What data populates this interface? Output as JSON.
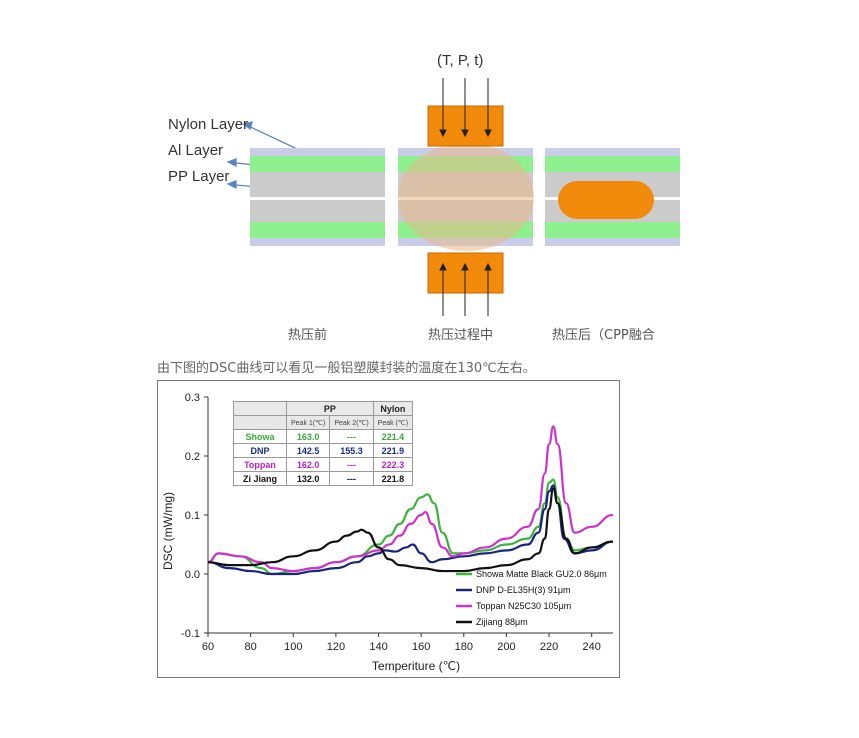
{
  "diagram": {
    "params_label": "(T, P, t)",
    "layers": [
      "Nylon Layer",
      "Al Layer",
      "PP Layer"
    ],
    "stages": [
      "热压前",
      "热压过程中",
      "热压后（CPP融合"
    ],
    "colors": {
      "nylon": "#c9cde8",
      "al": "#c9c9c9",
      "pp": "#8ef08e",
      "heater": "#f28a0c",
      "melt": "#f28a0c",
      "center": "#ffffff"
    }
  },
  "caption": "由下图的DSC曲线可以看见一般铝塑膜封装的温度在130℃左右。",
  "table": {
    "header_groups": [
      "PP",
      "Nylon"
    ],
    "sub_headers": [
      "Peak 1(℃)",
      "Peak 2(℃)",
      "Peak (℃)"
    ],
    "rows": [
      {
        "name": "Showa",
        "color": "#3aa83a",
        "values": [
          "163.0",
          "---",
          "221.4"
        ]
      },
      {
        "name": "DNP",
        "color": "#1a2a8a",
        "values": [
          "142.5",
          "155.3",
          "221.9"
        ]
      },
      {
        "name": "Toppan",
        "color": "#c21fc2",
        "values": [
          "162.0",
          "---",
          "222.3"
        ]
      },
      {
        "name": "Zi Jiang",
        "color": "#111111",
        "values": [
          "132.0",
          "---",
          "221.8"
        ]
      }
    ]
  },
  "chart_data": {
    "type": "line",
    "xlabel": "Temperiture (℃)",
    "ylabel": "DSC (mW/mg)",
    "xlim": [
      60,
      250
    ],
    "ylim": [
      -0.1,
      0.3
    ],
    "xticks": [
      60,
      80,
      100,
      120,
      140,
      160,
      180,
      200,
      220,
      240
    ],
    "yticks": [
      -0.1,
      0.0,
      0.1,
      0.2,
      0.3
    ],
    "ytick_labels": [
      "-0.1",
      "0.0",
      "0.1",
      "0.2",
      "0.3"
    ],
    "series": [
      {
        "name": "Showa Matte Black GU2.0 86μm",
        "color": "#3cb43c",
        "x": [
          60,
          65,
          75,
          85,
          90,
          100,
          110,
          120,
          130,
          140,
          145,
          150,
          155,
          160,
          163,
          166,
          170,
          175,
          180,
          190,
          200,
          210,
          215,
          218,
          220,
          222,
          224,
          228,
          232,
          240,
          250
        ],
        "y": [
          0.02,
          0.035,
          0.03,
          0.01,
          0.0,
          0.005,
          0.01,
          0.02,
          0.03,
          0.05,
          0.065,
          0.085,
          0.11,
          0.13,
          0.135,
          0.12,
          0.07,
          0.035,
          0.035,
          0.04,
          0.05,
          0.06,
          0.08,
          0.12,
          0.155,
          0.16,
          0.13,
          0.06,
          0.04,
          0.045,
          0.055
        ]
      },
      {
        "name": "DNP D-EL35H(3) 91μm",
        "color": "#1a237e",
        "x": [
          60,
          70,
          80,
          90,
          100,
          110,
          120,
          130,
          135,
          140,
          143,
          148,
          153,
          156,
          160,
          165,
          170,
          180,
          190,
          200,
          210,
          215,
          218,
          220,
          222,
          224,
          227,
          232,
          240,
          250
        ],
        "y": [
          0.02,
          0.01,
          0.005,
          0.0,
          0.0,
          0.005,
          0.01,
          0.02,
          0.03,
          0.035,
          0.04,
          0.038,
          0.045,
          0.05,
          0.035,
          0.02,
          0.025,
          0.03,
          0.035,
          0.04,
          0.05,
          0.07,
          0.11,
          0.14,
          0.15,
          0.12,
          0.06,
          0.035,
          0.04,
          0.055
        ]
      },
      {
        "name": "Toppan N25C30 105μm",
        "color": "#cc33cc",
        "x": [
          60,
          65,
          75,
          85,
          90,
          100,
          110,
          120,
          130,
          140,
          145,
          150,
          155,
          160,
          162,
          165,
          170,
          175,
          180,
          190,
          200,
          210,
          215,
          218,
          220,
          222,
          224,
          228,
          232,
          240,
          250
        ],
        "y": [
          0.02,
          0.035,
          0.03,
          0.02,
          0.01,
          0.005,
          0.01,
          0.02,
          0.03,
          0.04,
          0.05,
          0.065,
          0.085,
          0.1,
          0.105,
          0.085,
          0.045,
          0.03,
          0.035,
          0.045,
          0.06,
          0.08,
          0.11,
          0.17,
          0.22,
          0.25,
          0.22,
          0.12,
          0.07,
          0.08,
          0.1
        ]
      },
      {
        "name": "Zijiang 88μm",
        "color": "#111111",
        "x": [
          60,
          70,
          80,
          90,
          100,
          110,
          120,
          125,
          130,
          132,
          135,
          140,
          145,
          150,
          160,
          170,
          180,
          190,
          200,
          210,
          215,
          218,
          220,
          222,
          224,
          228,
          232,
          240,
          250
        ],
        "y": [
          0.02,
          0.015,
          0.015,
          0.02,
          0.03,
          0.04,
          0.055,
          0.065,
          0.072,
          0.075,
          0.07,
          0.045,
          0.025,
          0.015,
          0.01,
          0.005,
          0.005,
          0.01,
          0.015,
          0.025,
          0.035,
          0.06,
          0.11,
          0.145,
          0.12,
          0.06,
          0.035,
          0.045,
          0.055
        ]
      }
    ]
  }
}
